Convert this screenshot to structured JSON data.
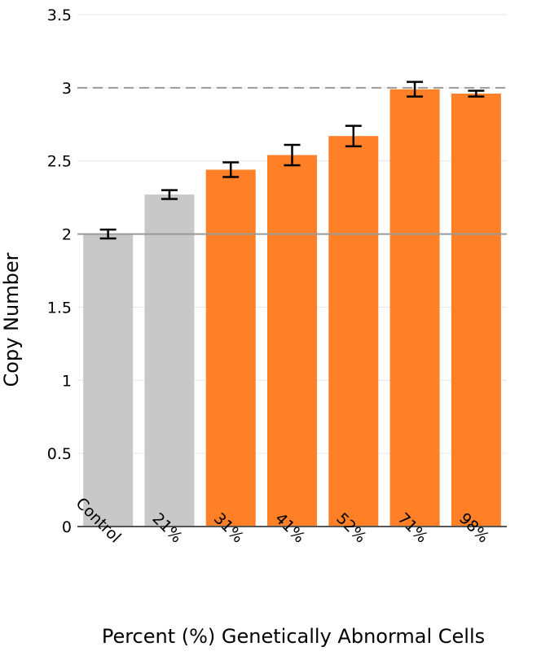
{
  "chart_data": {
    "type": "bar",
    "title": "",
    "xlabel": "Percent (%) Genetically Abnormal Cells",
    "ylabel": "Copy Number",
    "categories": [
      "Control",
      "21%",
      "31%",
      "41%",
      "52%",
      "71%",
      "98%"
    ],
    "values": [
      2.0,
      2.27,
      2.44,
      2.54,
      2.67,
      2.99,
      2.96
    ],
    "error": [
      0.03,
      0.03,
      0.05,
      0.07,
      0.07,
      0.05,
      0.02
    ],
    "bar_colors": [
      "#c8c8c8",
      "#c8c8c8",
      "#ff8026",
      "#ff8026",
      "#ff8026",
      "#ff8026",
      "#ff8026"
    ],
    "ylim": [
      0,
      3.5
    ],
    "yticks": [
      "0",
      "0.5",
      "1",
      "1.5",
      "2",
      "2.5",
      "3",
      "3.5"
    ],
    "reference_lines": [
      {
        "value": 2,
        "style": "solid"
      },
      {
        "value": 3,
        "style": "dashed"
      }
    ],
    "grid": true,
    "colors": {
      "control": "#c8c8c8",
      "abnormal": "#ff8026",
      "error_bar": "#000000",
      "grid": "#e6e6e6",
      "reference": "#9a9a9a"
    }
  }
}
